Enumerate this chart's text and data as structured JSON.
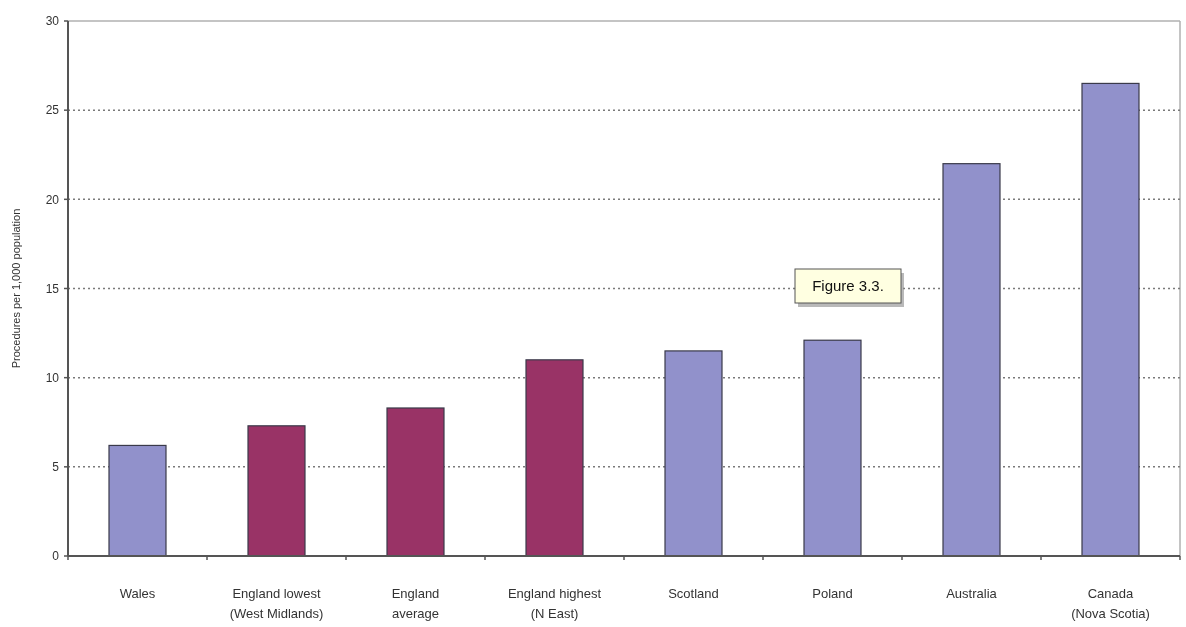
{
  "chart_data": {
    "type": "bar",
    "ylabel": "Procedures per 1,000 population",
    "categories": [
      "Wales",
      "England lowest\n(West Midlands)",
      "England\naverage",
      "England highest\n(N East)",
      "Scotland",
      "Poland",
      "Australia",
      "Canada\n(Nova Scotia)"
    ],
    "values": [
      6.2,
      7.3,
      8.3,
      11,
      11.5,
      12.1,
      22,
      26.5
    ],
    "colors": [
      "#9191cb",
      "#993366",
      "#993366",
      "#993366",
      "#9191cb",
      "#9191cb",
      "#9191cb",
      "#9191cb"
    ],
    "ylim": [
      0,
      30
    ],
    "yticks": [
      0,
      5,
      10,
      15,
      20,
      25,
      30
    ],
    "grid": "y",
    "annotations": [
      "Figure 3.3."
    ]
  }
}
